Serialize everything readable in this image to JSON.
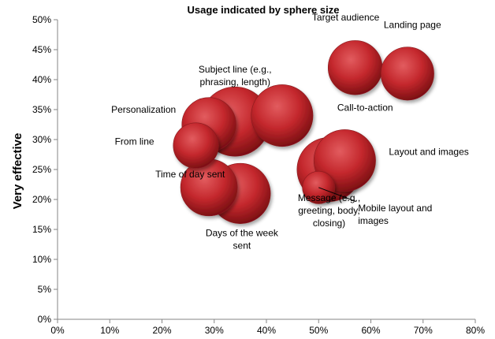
{
  "chart_data": {
    "type": "bubble",
    "title": "Usage indicated by sphere size",
    "xlabel": "",
    "ylabel": "Very effective",
    "xlim": [
      0,
      80
    ],
    "ylim": [
      0,
      50
    ],
    "x_ticks": [
      "0%",
      "10%",
      "20%",
      "30%",
      "40%",
      "50%",
      "60%",
      "70%",
      "80%"
    ],
    "y_ticks": [
      "0%",
      "5%",
      "10%",
      "15%",
      "20%",
      "25%",
      "30%",
      "35%",
      "40%",
      "45%",
      "50%"
    ],
    "grid": false,
    "bubble_color": "#c0282d",
    "points": [
      {
        "label": "Subject line (e.g., phrasing, length)",
        "label_lines": [
          "Subject line (e.g.,",
          "phrasing, length)"
        ],
        "x": 34,
        "y": 33,
        "size": 82
      },
      {
        "label": "Call-to-action",
        "label_lines": [
          "Call-to-action"
        ],
        "x": 43,
        "y": 34,
        "size": 65
      },
      {
        "label": "Message (e.g., greeting, body, closing)",
        "label_lines": [
          "Message (e.g.,",
          "greeting, body,",
          "closing)"
        ],
        "x": 52,
        "y": 25,
        "size": 70
      },
      {
        "label": "Layout and images",
        "label_lines": [
          "Layout and images"
        ],
        "x": 55,
        "y": 26.5,
        "size": 65
      },
      {
        "label": "Days of the week sent",
        "label_lines": [
          "Days of the week",
          "sent"
        ],
        "x": 35,
        "y": 21,
        "size": 62
      },
      {
        "label": "Time of day sent",
        "label_lines": [
          "Time of day sent"
        ],
        "x": 29,
        "y": 22,
        "size": 55
      },
      {
        "label": "Personalization",
        "label_lines": [
          "Personalization"
        ],
        "x": 29,
        "y": 32.5,
        "size": 50
      },
      {
        "label": "From line",
        "label_lines": [
          "From line"
        ],
        "x": 26.5,
        "y": 29,
        "size": 35
      },
      {
        "label": "Target audience",
        "label_lines": [
          "Target audience"
        ],
        "x": 57,
        "y": 42,
        "size": 50
      },
      {
        "label": "Landing page",
        "label_lines": [
          "Landing page"
        ],
        "x": 67,
        "y": 41,
        "size": 48
      },
      {
        "label": "Mobile layout and images",
        "label_lines": [
          "Mobile layout and",
          "images"
        ],
        "x": 50,
        "y": 22,
        "size": 18
      }
    ]
  }
}
